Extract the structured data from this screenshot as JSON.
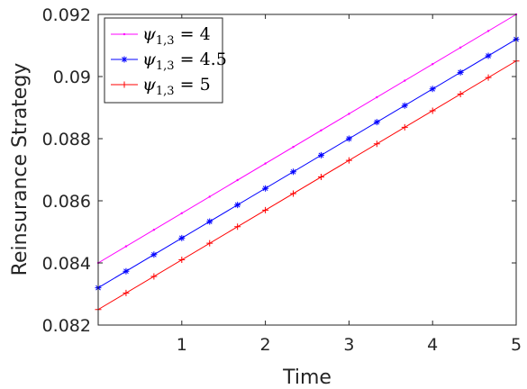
{
  "chart_data": {
    "type": "line",
    "xlabel": "Time",
    "ylabel": "Reinsurance Strategy",
    "xlim": [
      0,
      5
    ],
    "ylim": [
      0.082,
      0.092
    ],
    "xticks": [
      1,
      2,
      3,
      4,
      5
    ],
    "yticks": [
      0.082,
      0.084,
      0.086,
      0.088,
      0.09,
      0.092
    ],
    "ytick_labels": [
      "0.082",
      "0.084",
      "0.086",
      "0.088",
      "0.09",
      "0.092"
    ],
    "grid": false,
    "legend_position": "top-left",
    "series": [
      {
        "name": "ψ1,3 = 4",
        "label_main": "ψ",
        "label_sub": "1,3",
        "label_rest": " = 4",
        "color": "#ff00ff",
        "marker": "point",
        "x": [
          0,
          5
        ],
        "y": [
          0.084,
          0.092
        ]
      },
      {
        "name": "ψ1,3 = 4.5",
        "label_main": "ψ",
        "label_sub": "1,3",
        "label_rest": " = 4.5",
        "color": "#0000ff",
        "marker": "asterisk",
        "x": [
          0,
          5
        ],
        "y": [
          0.0832,
          0.0912
        ]
      },
      {
        "name": "ψ1,3 = 5",
        "label_main": "ψ",
        "label_sub": "1,3",
        "label_rest": " = 5",
        "color": "#ff0000",
        "marker": "plus",
        "x": [
          0,
          5
        ],
        "y": [
          0.0825,
          0.0905
        ]
      }
    ]
  }
}
